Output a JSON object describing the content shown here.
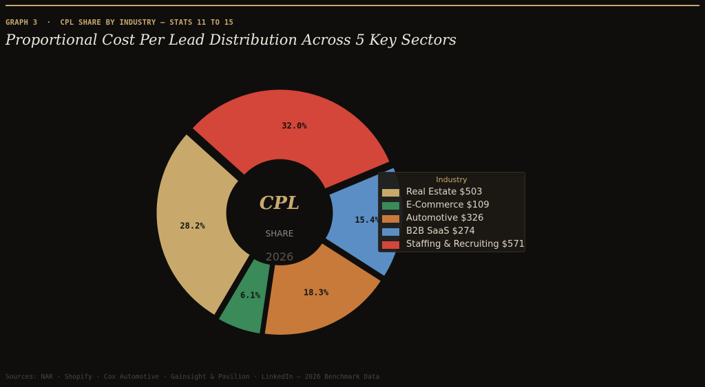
{
  "header": {
    "kicker": "GRAPH 3  ·  CPL SHARE BY INDUSTRY — STATS 11 TO 15",
    "title": "Proportional Cost Per Lead Distribution Across 5 Key Sectors"
  },
  "center": {
    "title": "CPL",
    "subtitle": "SHARE",
    "year": "2026"
  },
  "legend": {
    "title": "Industry",
    "items": [
      {
        "label": "Real Estate $503",
        "color": "#c8a96b"
      },
      {
        "label": "E-Commerce $109",
        "color": "#3a8a5a"
      },
      {
        "label": "Automotive $326",
        "color": "#c87a3a"
      },
      {
        "label": "B2B SaaS $274",
        "color": "#5b8ec4"
      },
      {
        "label": "Staffing & Recruiting $571",
        "color": "#d4453a"
      }
    ]
  },
  "footer": {
    "source": "Sources: NAR · Shopify · Cox Automotive · Gainsight & Pavilion · LinkedIn — 2026 Benchmark Data"
  },
  "chart_data": {
    "type": "pie",
    "categories": [
      "Real Estate",
      "E-Commerce",
      "Automotive",
      "B2B SaaS",
      "Staffing & Recruiting"
    ],
    "values": [
      503,
      109,
      326,
      274,
      571
    ],
    "percent_labels": [
      "28.2%",
      "6.1%",
      "18.3%",
      "15.4%",
      "32.0%"
    ],
    "colors": [
      "#c8a96b",
      "#3a8a5a",
      "#c87a3a",
      "#5b8ec4",
      "#d4453a"
    ],
    "donut": true,
    "start_angle_deg": 138,
    "direction": "counterclockwise",
    "legend_placement": "right"
  }
}
